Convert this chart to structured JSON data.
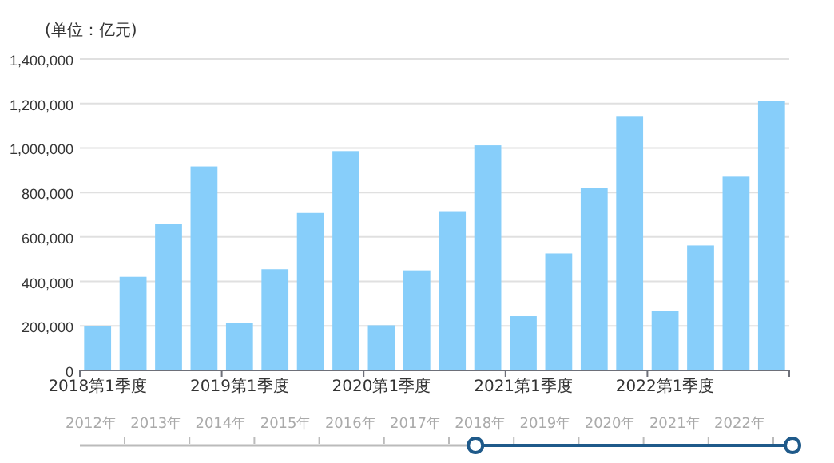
{
  "chart_data": {
    "type": "bar",
    "ylabel": "(单位：亿元)",
    "categories": [
      "2018第1季度",
      null,
      null,
      null,
      "2019第1季度",
      null,
      null,
      null,
      "2020第1季度",
      null,
      null,
      null,
      "2021第1季度",
      null,
      null,
      null,
      "2022第1季度",
      null,
      null,
      null
    ],
    "series": [
      {
        "color": "#87cefa",
        "values": [
          200000,
          421000,
          658000,
          917000,
          213000,
          455000,
          708000,
          986000,
          203000,
          450000,
          716000,
          1012000,
          244000,
          526000,
          819000,
          1144000,
          268000,
          562000,
          871000,
          1211000
        ]
      }
    ],
    "ylim": [
      0,
      1400000
    ],
    "yticks": [
      {
        "value": 0,
        "label": "0"
      },
      {
        "value": 200000,
        "label": "200,000"
      },
      {
        "value": 400000,
        "label": "400,000"
      },
      {
        "value": 600000,
        "label": "600,000"
      },
      {
        "value": 800000,
        "label": "800,000"
      },
      {
        "value": 1000000,
        "label": "1,000,000"
      },
      {
        "value": 1200000,
        "label": "1,200,000"
      },
      {
        "value": 1400000,
        "label": "1,400,000"
      }
    ],
    "grid": "y",
    "annotations": [
      "2012年",
      "2013年",
      "2014年",
      "2015年",
      "2016年",
      "2017年",
      "2018年",
      "2019年",
      "2020年",
      "2021年",
      "2022年"
    ]
  }
}
